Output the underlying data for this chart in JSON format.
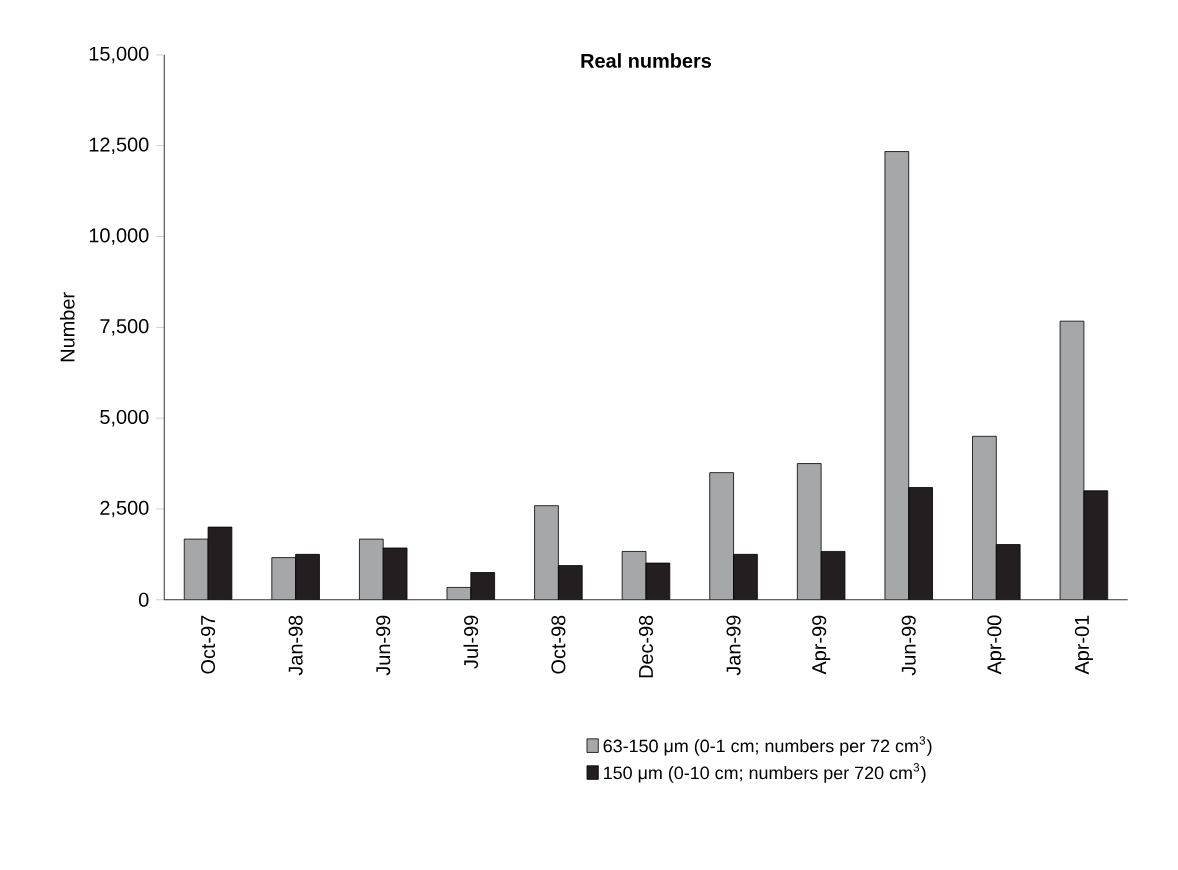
{
  "chart_data": {
    "type": "bar",
    "title": "Real numbers",
    "ylabel": "Number",
    "categories": [
      "Oct-97",
      "Jan-98",
      "Jun-99",
      "Jul-99",
      "Oct-98",
      "Dec-98",
      "Jan-99",
      "Apr-99",
      "Jun-99",
      "Apr-00",
      "Apr-01"
    ],
    "series": [
      {
        "name": "63-150 μm (0-1 cm; numbers per 72 cm$^{3}$)",
        "color": "#a6a7a9",
        "values": [
          1670,
          1160,
          1670,
          340,
          2590,
          1330,
          3500,
          3750,
          12340,
          4500,
          7670
        ]
      },
      {
        "name": "150 μm (0-10 cm; numbers per 720 cm$^{3}$)",
        "color": "#231f20",
        "values": [
          2000,
          1250,
          1425,
          750,
          940,
          1010,
          1250,
          1330,
          3090,
          1520,
          3000
        ]
      }
    ],
    "ylim": [
      0,
      15000
    ],
    "yticks": [
      0,
      {
        "value": 2500,
        "label": "2,500"
      },
      {
        "value": 5000,
        "label": "5,000"
      },
      {
        "value": 7500,
        "label": "7,500"
      },
      {
        "value": 10000,
        "label": "10,000"
      },
      {
        "value": 12500,
        "label": "12,500"
      },
      {
        "value": 15000,
        "label": "15,000"
      }
    ],
    "grid": false,
    "legend": "bottom"
  }
}
